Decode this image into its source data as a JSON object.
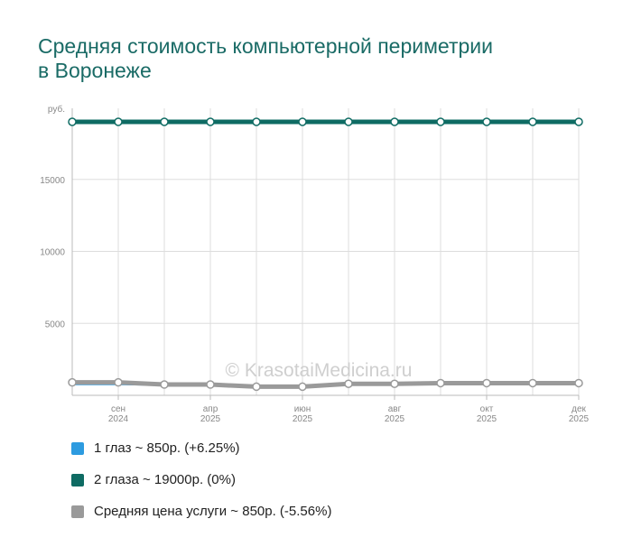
{
  "title_lines": [
    "Средняя стоимость компьютерной периметрии",
    "в Воронеже"
  ],
  "watermark": "© KrasotaiMedicina.ru",
  "legend": [
    {
      "label": "1 глаз ~ 850р. (+6.25%)",
      "color": "#2d9be0"
    },
    {
      "label": "2 глаза ~ 19000р. (0%)",
      "color": "#0e6b63"
    },
    {
      "label": "Средняя цена услуги ~ 850р. (-5.56%)",
      "color": "#9a9a9a"
    }
  ],
  "chart_data": {
    "type": "line",
    "y_unit_label": "руб.",
    "ylim": [
      0,
      19000
    ],
    "yticks": [
      5000,
      10000,
      15000
    ],
    "x": [
      0,
      1,
      2,
      3,
      4,
      5,
      6,
      7,
      8,
      9,
      10,
      11
    ],
    "xlim": [
      0,
      11
    ],
    "xtick_labels": [
      {
        "x": 1,
        "month": "сен",
        "year": "2024"
      },
      {
        "x": 3,
        "month": "апр",
        "year": "2025"
      },
      {
        "x": 5,
        "month": "июн",
        "year": "2025"
      },
      {
        "x": 7,
        "month": "авг",
        "year": "2025"
      },
      {
        "x": 9,
        "month": "окт",
        "year": "2025"
      },
      {
        "x": 11,
        "month": "дек",
        "year": "2025"
      }
    ],
    "grid": true,
    "series": [
      {
        "name": "1 глаз",
        "color": "#2d9be0",
        "values": [
          800,
          800,
          750,
          750,
          600,
          600,
          800,
          800,
          850,
          850,
          850,
          850
        ],
        "markers": false
      },
      {
        "name": "2 глаза",
        "color": "#0e6b63",
        "values": [
          19000,
          19000,
          19000,
          19000,
          19000,
          19000,
          19000,
          19000,
          19000,
          19000,
          19000,
          19000
        ],
        "markers": true
      },
      {
        "name": "Средняя цена услуги",
        "color": "#9a9a9a",
        "values": [
          900,
          900,
          750,
          750,
          600,
          600,
          800,
          800,
          850,
          850,
          850,
          850
        ],
        "markers": true
      }
    ]
  }
}
